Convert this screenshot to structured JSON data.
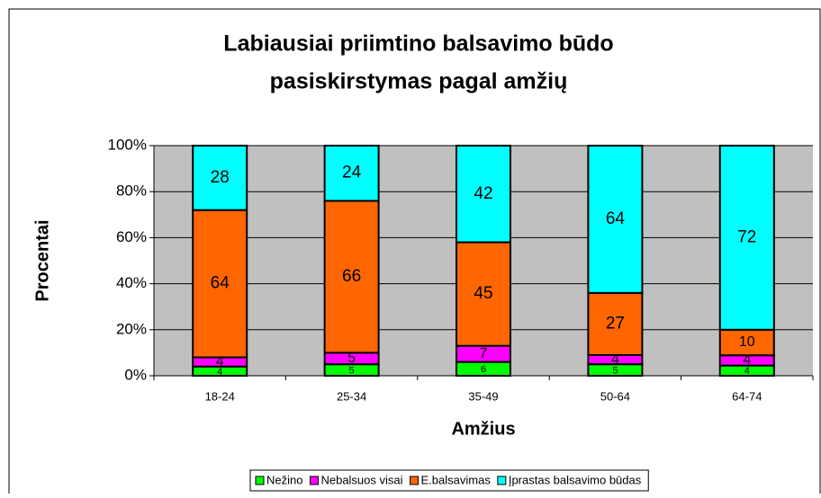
{
  "chart_data": {
    "type": "bar",
    "stacking": "percent",
    "title": "Labiausiai priimtino balsavimo būdo",
    "subtitle": "pasiskirstymas pagal amžių",
    "x_label": "Amžius",
    "y_label": "Procentai",
    "categories": [
      "18-24",
      "25-34",
      "35-49",
      "50-64",
      "64-74"
    ],
    "series": [
      {
        "name": "Nežino",
        "color": "#00ff00",
        "values": [
          4,
          5,
          6,
          5,
          4
        ]
      },
      {
        "name": "Nebalsuos visai",
        "color": "#ff00ff",
        "values": [
          4,
          5,
          7,
          4,
          4
        ]
      },
      {
        "name": "E.balsavimas",
        "color": "#ff6600",
        "values": [
          64,
          66,
          45,
          27,
          10
        ]
      },
      {
        "name": "Įprastas balsavimo būdas",
        "color": "#00ffff",
        "values": [
          28,
          24,
          42,
          64,
          72
        ]
      }
    ],
    "ylim": [
      0,
      100
    ],
    "yticks": [
      {
        "value": 0,
        "label": "0%"
      },
      {
        "value": 20,
        "label": "20%"
      },
      {
        "value": 40,
        "label": "40%"
      },
      {
        "value": 60,
        "label": "60%"
      },
      {
        "value": 80,
        "label": "80%"
      },
      {
        "value": 100,
        "label": "100%"
      }
    ],
    "grid": true,
    "legend": "bottom"
  }
}
